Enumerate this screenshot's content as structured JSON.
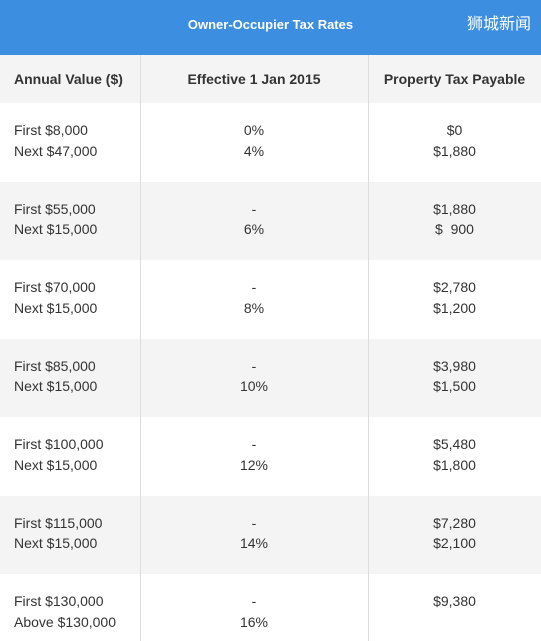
{
  "header": {
    "title": "Owner-Occupier Tax Rates",
    "watermark": "狮城新闻"
  },
  "table": {
    "columns": [
      "Annual Value ($)",
      "Effective 1 Jan 2015",
      "Property Tax Payable"
    ],
    "rows": [
      [
        [
          "First $8,000",
          "Next $47,000"
        ],
        [
          "0%",
          "4%"
        ],
        [
          "$0",
          "$1,880"
        ]
      ],
      [
        [
          "First $55,000",
          "Next $15,000"
        ],
        [
          "-",
          "6%"
        ],
        [
          "$1,880",
          "$  900"
        ]
      ],
      [
        [
          "First $70,000",
          "Next $15,000"
        ],
        [
          "-",
          "8%"
        ],
        [
          "$2,780",
          "$1,200"
        ]
      ],
      [
        [
          "First $85,000",
          "Next $15,000"
        ],
        [
          "-",
          "10%"
        ],
        [
          "$3,980",
          "$1,500"
        ]
      ],
      [
        [
          "First $100,000",
          "Next $15,000"
        ],
        [
          "-",
          "12%"
        ],
        [
          "$5,480",
          "$1,800"
        ]
      ],
      [
        [
          "First $115,000",
          "Next $15,000"
        ],
        [
          "-",
          "14%"
        ],
        [
          "$7,280",
          "$2,100"
        ]
      ],
      [
        [
          "First $130,000",
          "Above $130,000"
        ],
        [
          "-",
          "16%"
        ],
        [
          "$9,380"
        ]
      ]
    ]
  }
}
